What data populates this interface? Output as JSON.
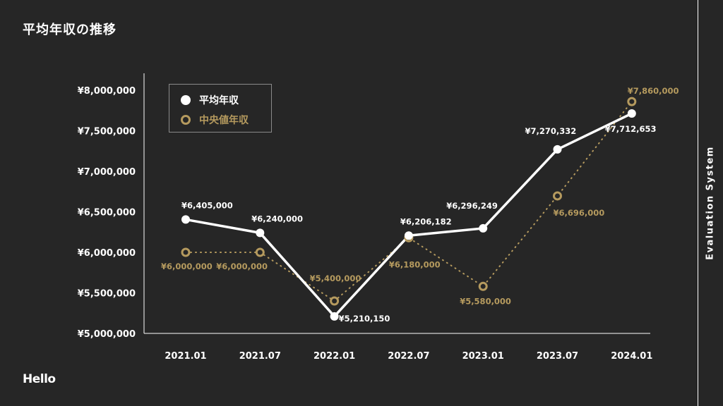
{
  "slide": {
    "title": "平均年収の推移",
    "side_label": "Evaluation System",
    "logo": "Hello"
  },
  "colors": {
    "background": "#262626",
    "average": "#ffffff",
    "median": "#b59a5e",
    "axis": "#ffffff",
    "legend_border": "#8a8a8a"
  },
  "chart_data": {
    "type": "line",
    "categories": [
      "2021.01",
      "2021.07",
      "2022.01",
      "2022.07",
      "2023.01",
      "2023.07",
      "2024.01"
    ],
    "y_ticks": [
      "¥5,000,000",
      "¥5,500,000",
      "¥6,000,000",
      "¥6,500,000",
      "¥7,000,000",
      "¥7,500,000",
      "¥8,000,000"
    ],
    "y_tick_values": [
      5000000,
      5500000,
      6000000,
      6500000,
      7000000,
      7500000,
      8000000
    ],
    "ylim": [
      5000000,
      8000000
    ],
    "grid": false,
    "legend_position": "top-left",
    "series": [
      {
        "name": "平均年収",
        "style": "solid-filled",
        "values": [
          6405000,
          6240000,
          5210150,
          6206182,
          6296249,
          7270332,
          7712653
        ],
        "labels": [
          "¥6,405,000",
          "¥6,240,000",
          "¥5,210,150",
          "¥6,206,182",
          "¥6,296,249",
          "¥7,270,332",
          "¥7,712,653"
        ]
      },
      {
        "name": "中央値年収",
        "style": "dotted-hollow",
        "values": [
          6000000,
          6000000,
          5400000,
          6180000,
          5580000,
          6696000,
          7860000
        ],
        "labels": [
          "¥6,000,000",
          "¥6,000,000",
          "¥5,400,000",
          "¥6,180,000",
          "¥5,580,000",
          "¥6,696,000",
          "¥7,860,000"
        ]
      }
    ]
  }
}
